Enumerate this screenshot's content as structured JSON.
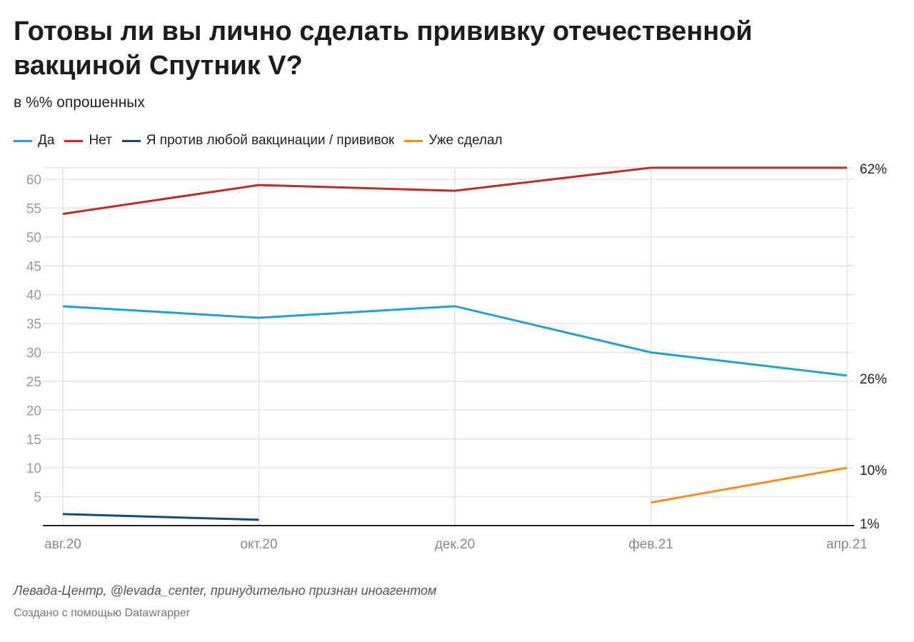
{
  "title": "Готовы ли вы лично сделать прививку отечественной вакциной Спутник V?",
  "subtitle": "в %% опрошенных",
  "source": "Левада-Центр, @levada_center, принудительно признан иноагентом",
  "credit": "Создано с помощью Datawrapper",
  "chart_data": {
    "type": "line",
    "categories": [
      "авг.20",
      "окт.20",
      "дек.20",
      "фев.21",
      "апр.21"
    ],
    "ylim": [
      0,
      62
    ],
    "yticks": [
      5,
      10,
      15,
      20,
      25,
      30,
      35,
      40,
      45,
      50,
      55,
      60
    ],
    "grid": true,
    "legend_position": "top-left",
    "series": [
      {
        "name": "Да",
        "color": "#1fa3cc",
        "values": [
          38,
          36,
          38,
          30,
          26
        ],
        "end_label": "26%"
      },
      {
        "name": "Нет",
        "color": "#c22a26",
        "values": [
          54,
          59,
          58,
          62,
          62
        ],
        "end_label": "62%"
      },
      {
        "name": "Я против любой вакцинации / прививок",
        "color": "#0d4f73",
        "values": [
          2,
          1,
          null,
          null,
          null
        ],
        "end_label": "1%"
      },
      {
        "name": "Уже сделал",
        "color": "#f0901a",
        "values": [
          null,
          null,
          null,
          4,
          10
        ],
        "end_label": "10%"
      }
    ]
  }
}
